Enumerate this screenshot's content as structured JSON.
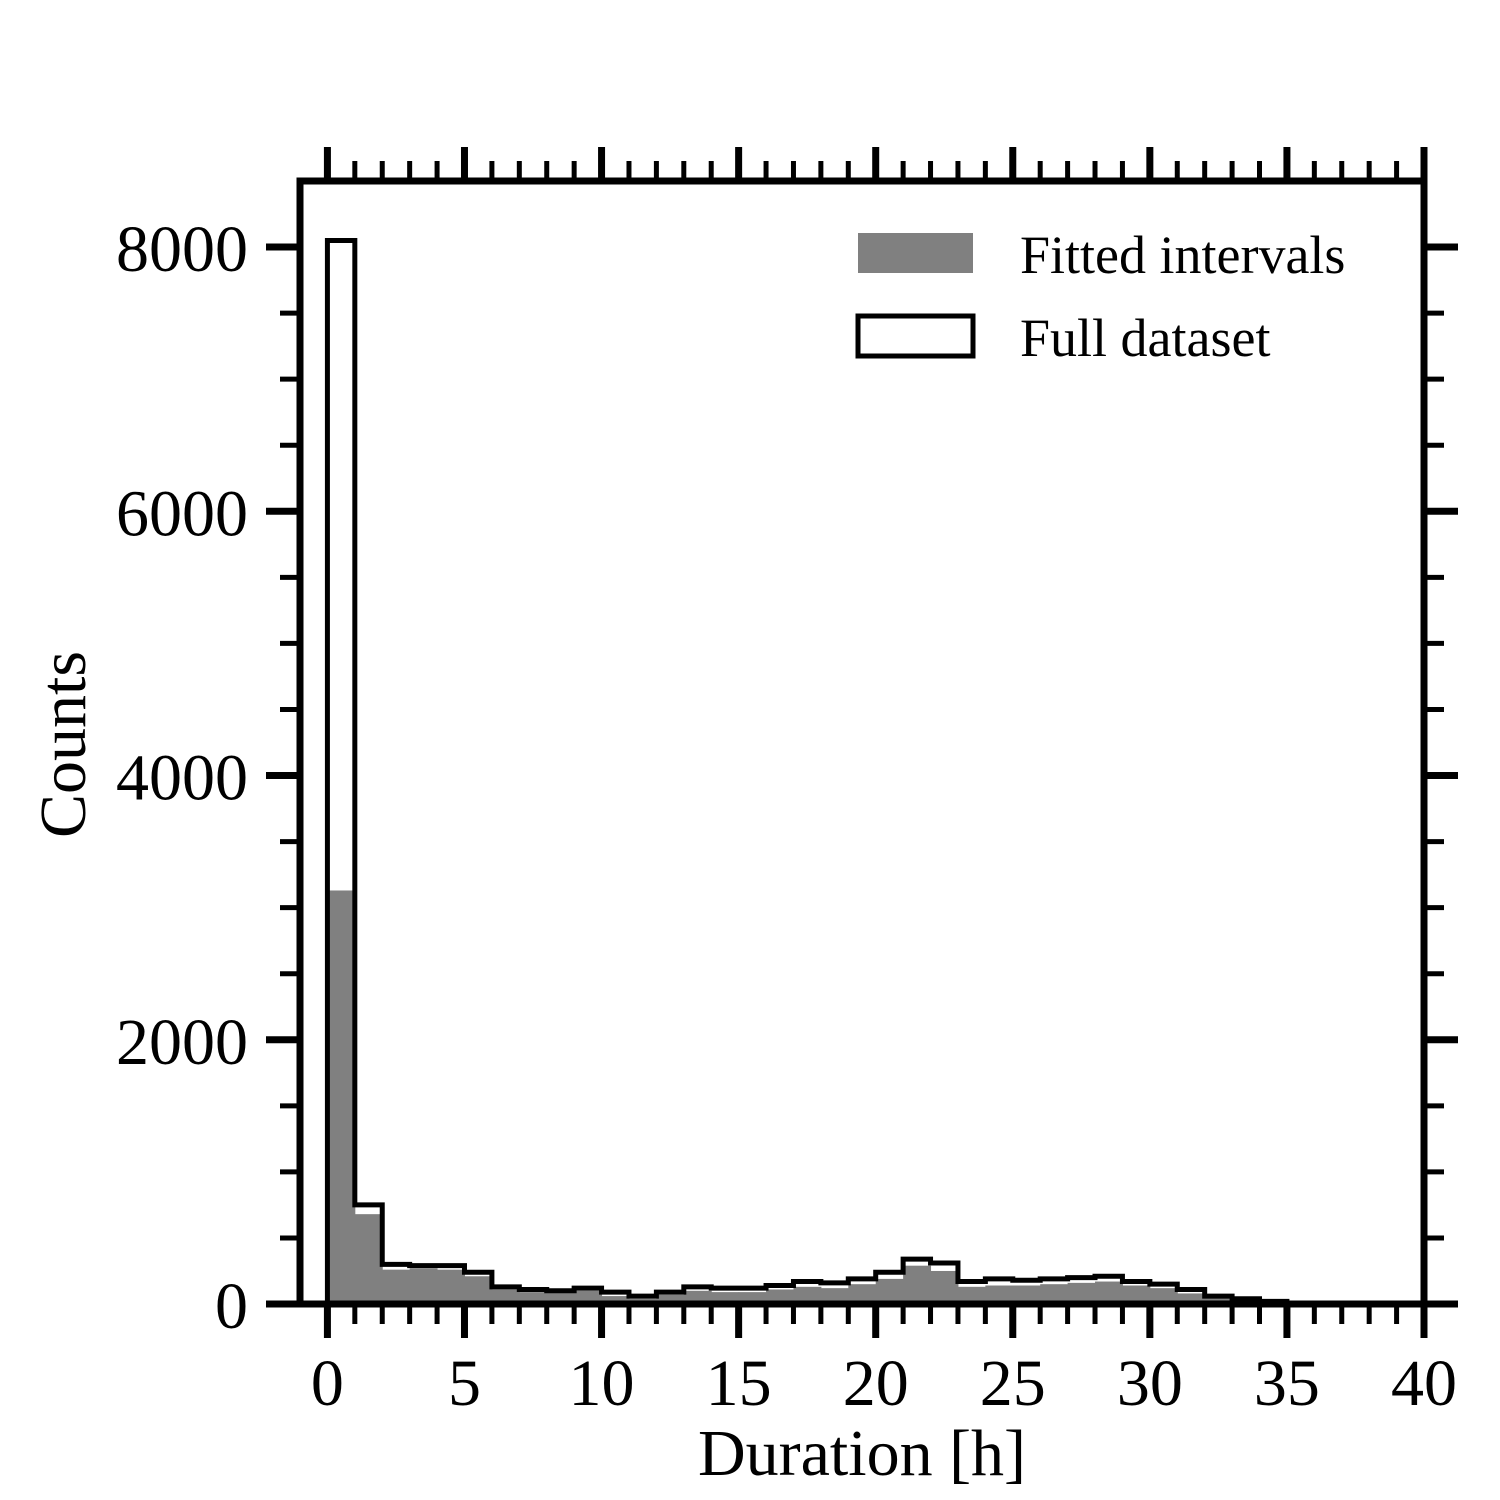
{
  "chart_data": {
    "type": "bar",
    "title": "",
    "xlabel": "Duration [h]",
    "ylabel": "Counts",
    "xlim": [
      -1,
      40
    ],
    "ylim": [
      0,
      8500
    ],
    "x_ticks": [
      "0",
      "5",
      "10",
      "15",
      "20",
      "25",
      "30",
      "35",
      "40"
    ],
    "y_ticks": [
      "0",
      "2000",
      "4000",
      "6000",
      "8000"
    ],
    "bin_width": 1,
    "bin_starts": [
      0,
      1,
      2,
      3,
      4,
      5,
      6,
      7,
      8,
      9,
      10,
      11,
      12,
      13,
      14,
      15,
      16,
      17,
      18,
      19,
      20,
      21,
      22,
      23,
      24,
      25,
      26,
      27,
      28,
      29,
      30,
      31,
      32,
      33,
      34,
      35,
      36,
      37,
      38,
      39
    ],
    "grid": false,
    "legend_position": "top-right",
    "series": [
      {
        "name": "Fitted intervals",
        "style": "filled",
        "color": "#808080",
        "values": [
          3130,
          680,
          260,
          270,
          260,
          210,
          110,
          90,
          90,
          100,
          60,
          40,
          70,
          100,
          90,
          90,
          110,
          130,
          120,
          150,
          190,
          290,
          250,
          130,
          140,
          140,
          150,
          160,
          170,
          140,
          120,
          80,
          50,
          30,
          10,
          0,
          0,
          0,
          0,
          0
        ]
      },
      {
        "name": "Full dataset",
        "style": "step-outline",
        "color": "#000000",
        "values": [
          8050,
          750,
          300,
          290,
          290,
          240,
          130,
          110,
          100,
          120,
          90,
          60,
          90,
          130,
          120,
          120,
          140,
          170,
          160,
          190,
          240,
          340,
          310,
          170,
          190,
          180,
          190,
          200,
          210,
          170,
          150,
          110,
          60,
          40,
          20,
          0,
          0,
          0,
          0,
          0
        ]
      }
    ]
  }
}
